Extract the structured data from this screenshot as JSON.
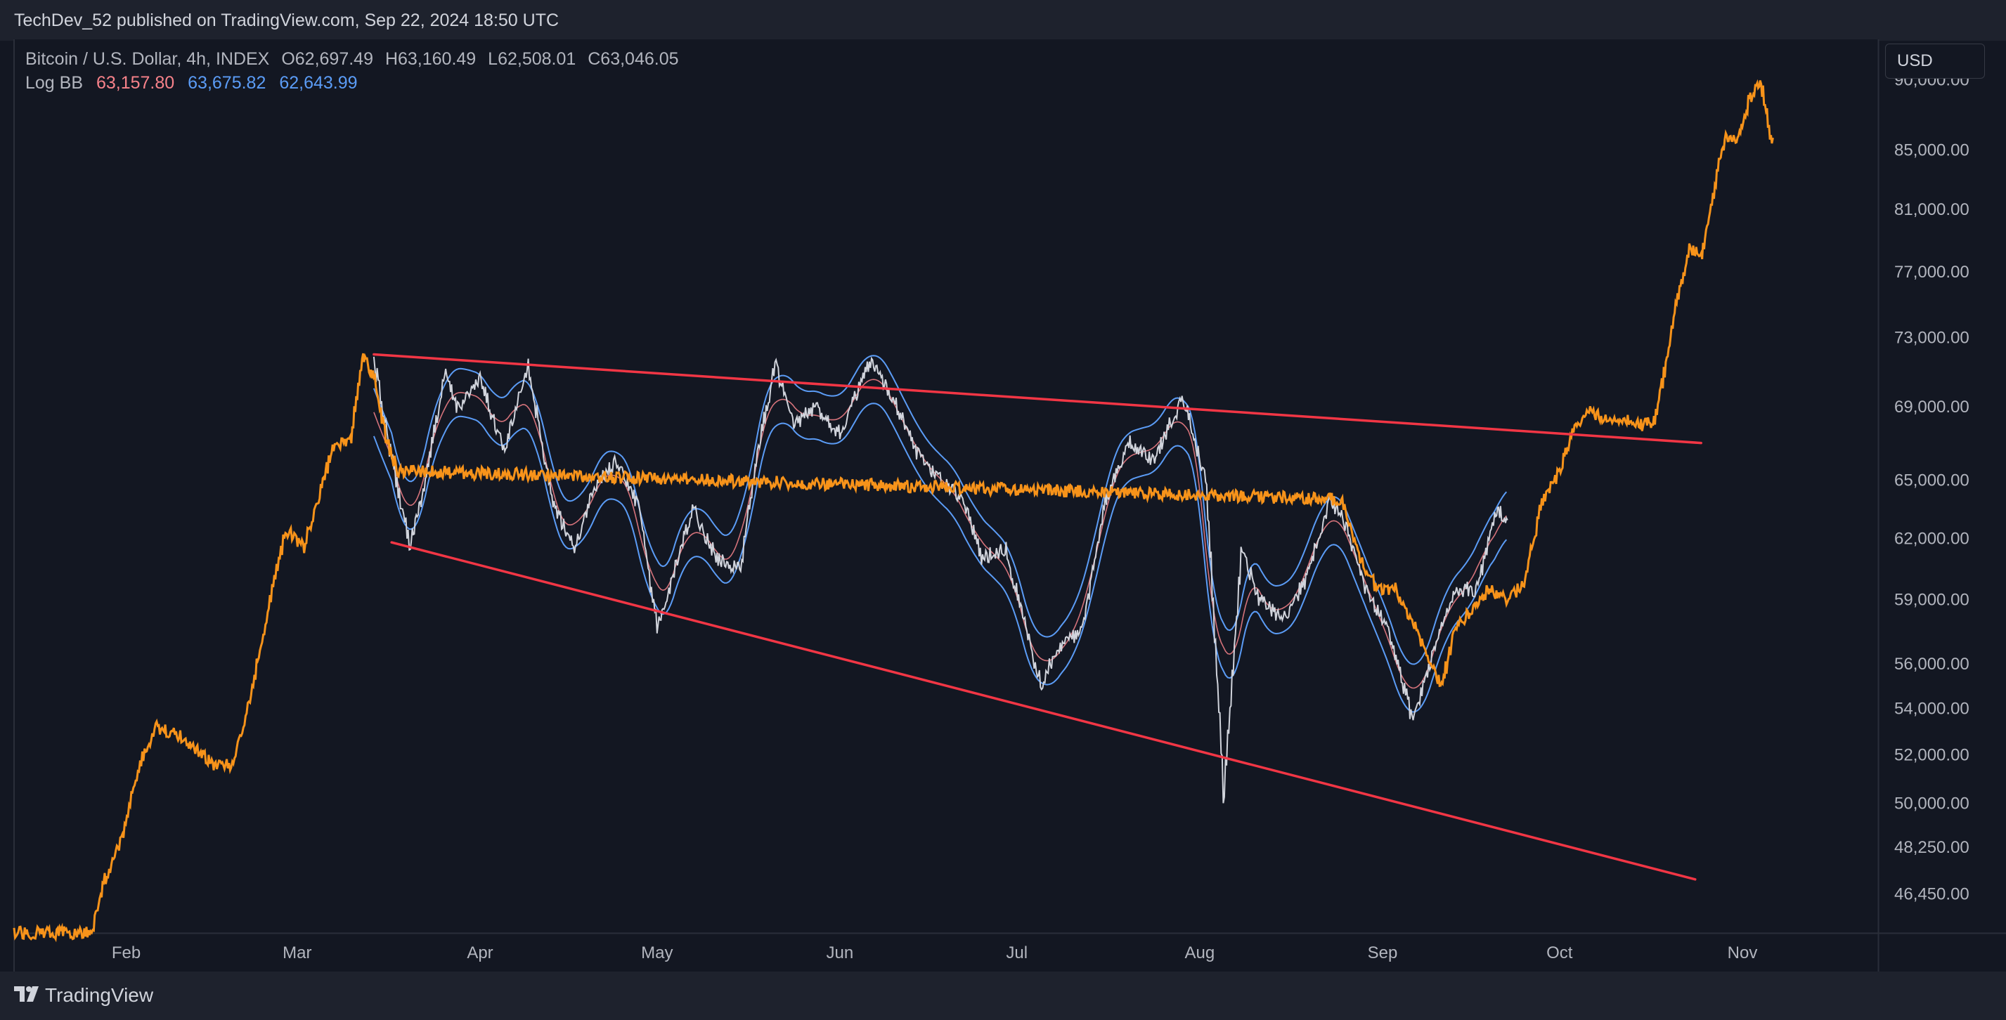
{
  "header": {
    "publish_line": "TechDev_52 published on TradingView.com, Sep 22, 2024 18:50 UTC"
  },
  "legend": {
    "symbol": "Bitcoin / U.S. Dollar, 4h, INDEX",
    "open": "O62,697.49",
    "high": "H63,160.49",
    "low": "L62,508.01",
    "close": "C63,046.05",
    "indicator_name": "Log BB",
    "bb_basis": "63,157.80",
    "bb_upper": "63,675.82",
    "bb_lower": "62,643.99"
  },
  "currency": "USD",
  "footer": {
    "brand": "TradingView"
  },
  "colors": {
    "background": "#131722",
    "price_2024": "#d1d4dc",
    "price_overlay": "#f7931a",
    "bb_bands": "#5b9cf6",
    "bb_basis": "#f7828a",
    "trendlines": "#f23645"
  },
  "chart_data": {
    "type": "line",
    "title": "Bitcoin / U.S. Dollar, 4h, INDEX",
    "y_scale": "log",
    "ylim": [
      45000,
      93000
    ],
    "y_ticks": [
      "90,000.00",
      "85,000.00",
      "81,000.00",
      "77,000.00",
      "73,000.00",
      "69,000.00",
      "65,000.00",
      "62,000.00",
      "59,000.00",
      "56,000.00",
      "54,000.00",
      "52,000.00",
      "50,000.00",
      "48,250.00",
      "46,450.00"
    ],
    "x_range": [
      "2024-01-13",
      "2024-11-24"
    ],
    "x_ticks": [
      {
        "label": "Feb",
        "date": "2024-02-01"
      },
      {
        "label": "Mar",
        "date": "2024-03-01"
      },
      {
        "label": "Apr",
        "date": "2024-04-01"
      },
      {
        "label": "May",
        "date": "2024-05-01"
      },
      {
        "label": "Jun",
        "date": "2024-06-01"
      },
      {
        "label": "Jul",
        "date": "2024-07-01"
      },
      {
        "label": "Aug",
        "date": "2024-08-01"
      },
      {
        "label": "Sep",
        "date": "2024-09-01"
      },
      {
        "label": "Oct",
        "date": "2024-10-01"
      },
      {
        "label": "Nov",
        "date": "2024-11-01"
      }
    ],
    "series": [
      {
        "points": [
          [
            "2024-03-14",
            71500
          ],
          [
            "2024-03-17",
            66000
          ],
          [
            "2024-03-20",
            61800
          ],
          [
            "2024-03-22",
            64000
          ],
          [
            "2024-03-26",
            70800
          ],
          [
            "2024-03-28",
            69000
          ],
          [
            "2024-04-01",
            70500
          ],
          [
            "2024-04-05",
            66500
          ],
          [
            "2024-04-09",
            71500
          ],
          [
            "2024-04-13",
            64000
          ],
          [
            "2024-04-17",
            61500
          ],
          [
            "2024-04-20",
            64500
          ],
          [
            "2024-04-24",
            66000
          ],
          [
            "2024-04-28",
            63500
          ],
          [
            "2024-05-01",
            57500
          ],
          [
            "2024-05-03",
            59500
          ],
          [
            "2024-05-07",
            63500
          ],
          [
            "2024-05-11",
            61000
          ],
          [
            "2024-05-15",
            60500
          ],
          [
            "2024-05-18",
            66500
          ],
          [
            "2024-05-21",
            71500
          ],
          [
            "2024-05-24",
            68000
          ],
          [
            "2024-05-28",
            69000
          ],
          [
            "2024-06-01",
            67500
          ],
          [
            "2024-06-06",
            71500
          ],
          [
            "2024-06-10",
            69500
          ],
          [
            "2024-06-14",
            66500
          ],
          [
            "2024-06-18",
            65000
          ],
          [
            "2024-06-22",
            64000
          ],
          [
            "2024-06-25",
            61000
          ],
          [
            "2024-06-29",
            61500
          ],
          [
            "2024-07-05",
            55000
          ],
          [
            "2024-07-08",
            56800
          ],
          [
            "2024-07-12",
            57500
          ],
          [
            "2024-07-16",
            64000
          ],
          [
            "2024-07-20",
            67000
          ],
          [
            "2024-07-24",
            66000
          ],
          [
            "2024-07-29",
            69500
          ],
          [
            "2024-08-02",
            65000
          ],
          [
            "2024-08-05",
            50300
          ],
          [
            "2024-08-08",
            61500
          ],
          [
            "2024-08-11",
            59000
          ],
          [
            "2024-08-15",
            58000
          ],
          [
            "2024-08-19",
            60000
          ],
          [
            "2024-08-23",
            64000
          ],
          [
            "2024-08-26",
            62500
          ],
          [
            "2024-08-29",
            59500
          ],
          [
            "2024-09-02",
            57500
          ],
          [
            "2024-09-06",
            53500
          ],
          [
            "2024-09-09",
            56000
          ],
          [
            "2024-09-13",
            59500
          ],
          [
            "2024-09-17",
            59500
          ],
          [
            "2024-09-20",
            63500
          ],
          [
            "2024-09-22",
            63046
          ]
        ]
      },
      {
        "points": [
          [
            "2024-01-13",
            45000
          ],
          [
            "2024-01-26",
            45000
          ],
          [
            "2024-01-28",
            46800
          ],
          [
            "2024-01-31",
            48500
          ],
          [
            "2024-02-03",
            51500
          ],
          [
            "2024-02-06",
            53200
          ],
          [
            "2024-02-10",
            52800
          ],
          [
            "2024-02-14",
            52000
          ],
          [
            "2024-02-16",
            51500
          ],
          [
            "2024-02-19",
            51600
          ],
          [
            "2024-02-22",
            54500
          ],
          [
            "2024-02-25",
            58500
          ],
          [
            "2024-02-28",
            62500
          ],
          [
            "2024-03-02",
            61500
          ],
          [
            "2024-03-05",
            64500
          ],
          [
            "2024-03-07",
            66800
          ],
          [
            "2024-03-10",
            67200
          ],
          [
            "2024-03-12",
            72000
          ],
          [
            "2024-03-14",
            70500
          ],
          [
            "2024-03-16",
            67200
          ],
          [
            "2024-03-18",
            65500
          ],
          [
            "2024-08-25",
            64000
          ],
          [
            "2024-08-28",
            61000
          ],
          [
            "2024-08-31",
            59500
          ],
          [
            "2024-09-03",
            59500
          ],
          [
            "2024-09-06",
            58000
          ],
          [
            "2024-09-09",
            56000
          ],
          [
            "2024-09-11",
            55000
          ],
          [
            "2024-09-13",
            57500
          ],
          [
            "2024-09-16",
            58500
          ],
          [
            "2024-09-19",
            59500
          ],
          [
            "2024-09-22",
            59000
          ],
          [
            "2024-09-25",
            59800
          ],
          [
            "2024-09-28",
            64000
          ],
          [
            "2024-10-01",
            65500
          ],
          [
            "2024-10-03",
            67500
          ],
          [
            "2024-10-06",
            68800
          ],
          [
            "2024-10-09",
            68200
          ],
          [
            "2024-10-12",
            68400
          ],
          [
            "2024-10-15",
            68000
          ],
          [
            "2024-10-17",
            68200
          ],
          [
            "2024-10-19",
            71500
          ],
          [
            "2024-10-21",
            75500
          ],
          [
            "2024-10-23",
            78500
          ],
          [
            "2024-10-25",
            78000
          ],
          [
            "2024-10-27",
            82000
          ],
          [
            "2024-10-29",
            86000
          ],
          [
            "2024-10-31",
            85500
          ],
          [
            "2024-11-02",
            88500
          ],
          [
            "2024-11-04",
            90000
          ],
          [
            "2024-11-05",
            87500
          ],
          [
            "2024-11-06",
            85500
          ]
        ]
      }
    ],
    "trendlines": [
      {
        "from": [
          "2024-03-14",
          72000
        ],
        "to": [
          "2024-10-25",
          67000
        ]
      },
      {
        "from": [
          "2024-03-17",
          61800
        ],
        "to": [
          "2024-10-24",
          47000
        ]
      }
    ]
  }
}
